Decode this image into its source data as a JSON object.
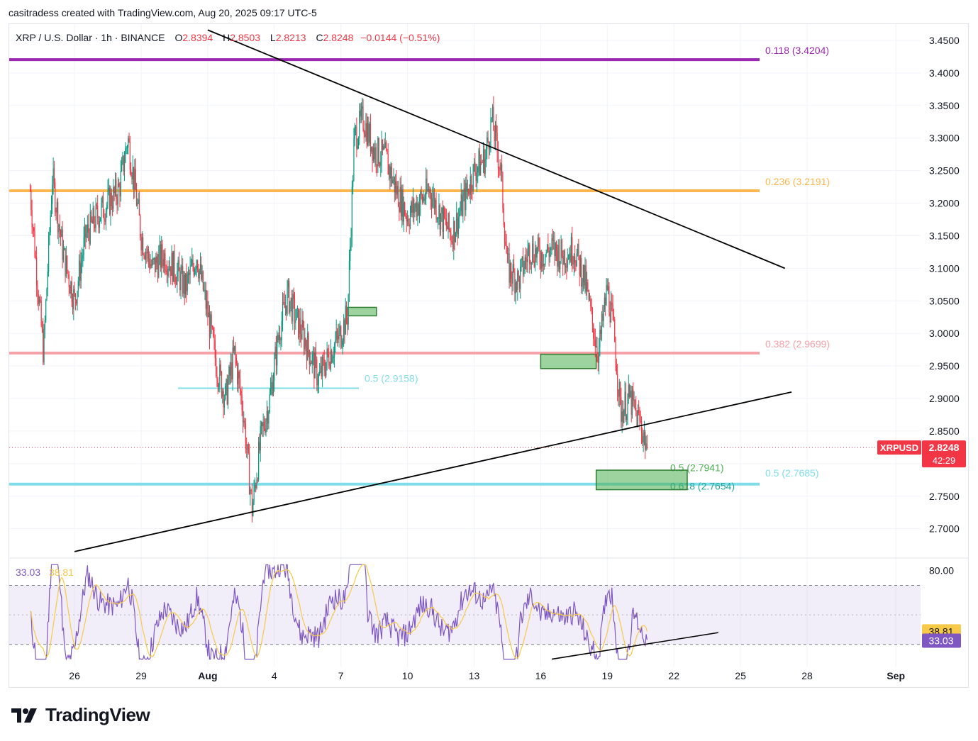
{
  "header": {
    "created_by": "casitradess created with TradingView.com, Aug 20, 2025 09:17 UTC-5"
  },
  "legend": {
    "symbol": "XRP / U.S. Dollar · 1h · BINANCE",
    "open_label": "O",
    "open": "2.8394",
    "high_label": "H",
    "high": "2.8503",
    "low_label": "L",
    "low": "2.8213",
    "close_label": "C",
    "close": "2.8248",
    "change": "−0.0144 (−0.51%)"
  },
  "rsi_legend": {
    "rsi": "33.03",
    "rsi_ma": "38.81"
  },
  "price_tag": {
    "ticker": "XRPUSD",
    "price": "2.8248",
    "countdown": "42:29"
  },
  "rsi_tags": {
    "ma": "38.81",
    "rsi": "33.03"
  },
  "brand": {
    "name": "TradingView"
  },
  "colors": {
    "up": "#089981",
    "down": "#f23645",
    "fib_118": "#9c27b0",
    "fib_236": "#ffb74d",
    "fib_382": "#f7a1a8",
    "fib_05_cyan": "#80deea",
    "zone_green": "#4caf50",
    "rsi": "#7e57c2",
    "rsi_ma": "#f7c948"
  },
  "chart_data": {
    "type": "candlestick",
    "symbol": "XRP / U.S. Dollar",
    "interval": "1h",
    "exchange": "BINANCE",
    "y_ticks": [
      "3.4500",
      "3.4000",
      "3.3500",
      "3.3000",
      "3.2500",
      "3.2000",
      "3.1500",
      "3.1000",
      "3.0500",
      "3.0000",
      "2.9500",
      "2.9000",
      "2.8500",
      "2.8000",
      "2.7500",
      "2.7000"
    ],
    "ylim": [
      2.655,
      3.475
    ],
    "x_labels": [
      {
        "label": "26",
        "day": 2
      },
      {
        "label": "29",
        "day": 5
      },
      {
        "label": "Aug",
        "day": 8
      },
      {
        "label": "4",
        "day": 11
      },
      {
        "label": "7",
        "day": 14
      },
      {
        "label": "10",
        "day": 17
      },
      {
        "label": "13",
        "day": 20
      },
      {
        "label": "16",
        "day": 23
      },
      {
        "label": "19",
        "day": 26
      },
      {
        "label": "22",
        "day": 29
      },
      {
        "label": "25",
        "day": 32
      },
      {
        "label": "28",
        "day": 35
      },
      {
        "label": "Sep",
        "day": 39
      }
    ],
    "price_path": [
      [
        0,
        3.22
      ],
      [
        0.4,
        3.05
      ],
      [
        0.6,
        2.97
      ],
      [
        1.0,
        3.24
      ],
      [
        1.5,
        3.12
      ],
      [
        2.0,
        3.05
      ],
      [
        2.5,
        3.15
      ],
      [
        3.0,
        3.18
      ],
      [
        3.5,
        3.2
      ],
      [
        4.0,
        3.22
      ],
      [
        4.4,
        3.3
      ],
      [
        4.7,
        3.23
      ],
      [
        5.0,
        3.15
      ],
      [
        5.5,
        3.1
      ],
      [
        6.0,
        3.12
      ],
      [
        6.5,
        3.1
      ],
      [
        7.0,
        3.07
      ],
      [
        7.5,
        3.12
      ],
      [
        8.0,
        3.03
      ],
      [
        8.4,
        2.95
      ],
      [
        8.8,
        2.9
      ],
      [
        9.2,
        2.97
      ],
      [
        9.6,
        2.88
      ],
      [
        10.0,
        2.73
      ],
      [
        10.4,
        2.84
      ],
      [
        10.8,
        2.9
      ],
      [
        11.2,
        3.0
      ],
      [
        11.6,
        3.06
      ],
      [
        12.0,
        3.02
      ],
      [
        12.5,
        2.98
      ],
      [
        13.0,
        2.93
      ],
      [
        13.5,
        2.97
      ],
      [
        14.0,
        3.0
      ],
      [
        14.3,
        3.03
      ],
      [
        14.6,
        3.3
      ],
      [
        15.0,
        3.33
      ],
      [
        15.5,
        3.28
      ],
      [
        16.0,
        3.27
      ],
      [
        16.5,
        3.22
      ],
      [
        17.0,
        3.18
      ],
      [
        17.5,
        3.2
      ],
      [
        18.0,
        3.22
      ],
      [
        18.5,
        3.18
      ],
      [
        19.0,
        3.15
      ],
      [
        19.5,
        3.2
      ],
      [
        20.0,
        3.25
      ],
      [
        20.5,
        3.27
      ],
      [
        20.8,
        3.33
      ],
      [
        21.2,
        3.25
      ],
      [
        21.5,
        3.1
      ],
      [
        22.0,
        3.08
      ],
      [
        22.5,
        3.13
      ],
      [
        23.0,
        3.12
      ],
      [
        23.5,
        3.13
      ],
      [
        24.0,
        3.12
      ],
      [
        24.5,
        3.13
      ],
      [
        25.0,
        3.08
      ],
      [
        25.3,
        3.02
      ],
      [
        25.6,
        2.97
      ],
      [
        26.0,
        3.07
      ],
      [
        26.3,
        3.0
      ],
      [
        26.6,
        2.88
      ],
      [
        27.0,
        2.9
      ],
      [
        27.5,
        2.86
      ],
      [
        27.8,
        2.8248
      ]
    ],
    "trendlines": [
      {
        "name": "upper",
        "x1": 8.0,
        "y1": 3.466,
        "x2": 34.0,
        "y2": 3.1
      },
      {
        "name": "lower",
        "x1": 2.0,
        "y1": 2.665,
        "x2": 34.3,
        "y2": 2.91
      }
    ],
    "fib_levels": [
      {
        "label": "0.118 (3.4204)",
        "value": 3.4204,
        "color": "#9c27b0"
      },
      {
        "label": "0.236 (3.2191)",
        "value": 3.2191,
        "color": "#ffb74d"
      },
      {
        "label": "0.382 (2.9699)",
        "value": 2.9699,
        "color": "#f7a1a8"
      },
      {
        "label": "0.5 (2.7685)",
        "value": 2.7685,
        "color": "#80deea"
      }
    ],
    "short_fibs": [
      {
        "label": "0.5 (2.9158)",
        "value": 2.9158
      },
      {
        "label": "0.5 (2.7941)",
        "value": 2.7941
      },
      {
        "label": "0.618 (2.7654)",
        "value": 2.7654
      }
    ],
    "zones": [
      {
        "x1": 14.3,
        "x2": 15.6,
        "y1": 3.027,
        "y2": 3.04
      },
      {
        "x1": 23.0,
        "x2": 25.5,
        "y1": 2.946,
        "y2": 2.968
      },
      {
        "x1": 25.5,
        "x2": 29.6,
        "y1": 2.76,
        "y2": 2.79
      }
    ],
    "rsi": {
      "y_tick": "80.00",
      "ylim": [
        15,
        88
      ],
      "upper_band": 70,
      "lower_band": 30,
      "mid": 50,
      "current_rsi": 33.03,
      "current_ma": 38.81,
      "divergence_line": {
        "x1": 23.5,
        "y1": 20,
        "x2": 31.0,
        "y2": 38
      }
    }
  }
}
